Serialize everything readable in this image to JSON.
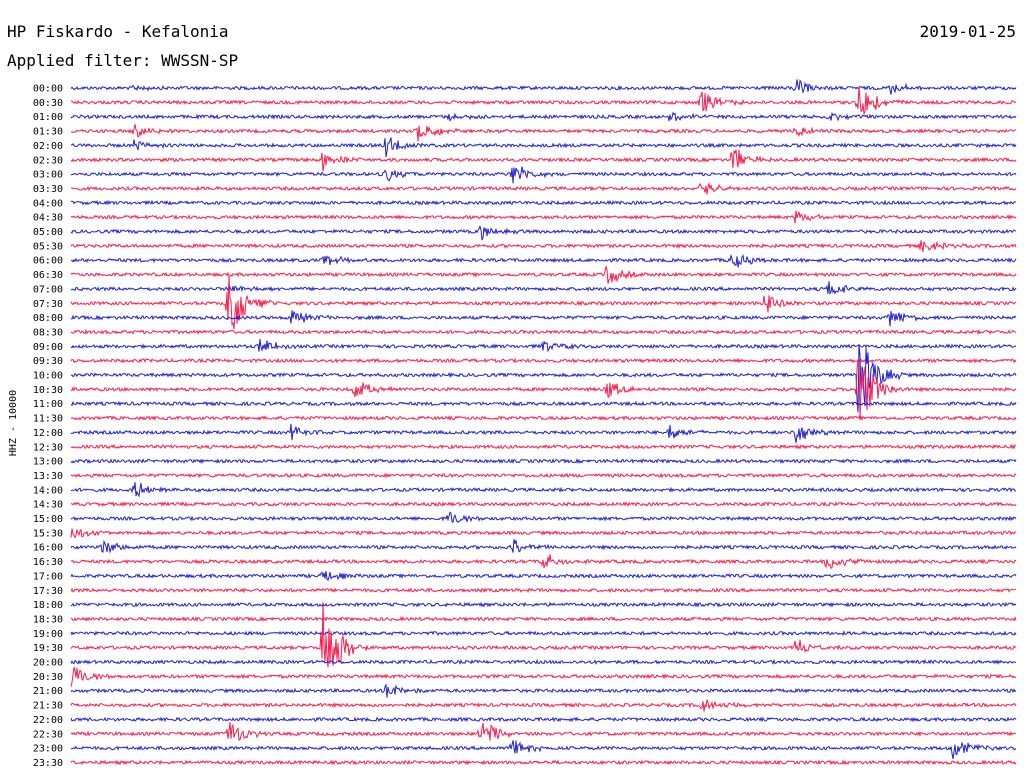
{
  "header": {
    "station": "HP Fiskardo - Kefalonia",
    "date": "2019-01-25",
    "filter": "Applied filter: WWSSN-SP"
  },
  "chart_data": {
    "type": "line",
    "title": "HP Fiskardo - Kefalonia",
    "subtitle": "Applied filter: WWSSN-SP",
    "date": "2019-01-25",
    "ylabel": "HHZ - 10000",
    "xlabel": "",
    "row_labels": [
      "00:00",
      "00:30",
      "01:00",
      "01:30",
      "02:00",
      "02:30",
      "03:00",
      "03:30",
      "04:00",
      "04:30",
      "05:00",
      "05:30",
      "06:00",
      "06:30",
      "07:00",
      "07:30",
      "08:00",
      "08:30",
      "09:00",
      "09:30",
      "10:00",
      "10:30",
      "11:00",
      "11:30",
      "12:00",
      "12:30",
      "13:00",
      "13:30",
      "14:00",
      "14:30",
      "15:00",
      "15:30",
      "16:00",
      "16:30",
      "17:00",
      "17:30",
      "18:00",
      "18:30",
      "19:00",
      "19:30",
      "20:00",
      "20:30",
      "21:00",
      "21:30",
      "22:00",
      "22:30",
      "23:00",
      "23:30"
    ],
    "row_minutes": 30,
    "trace_colors": [
      "#1f1fd6",
      "#ff1a4b"
    ],
    "grid": false,
    "events": [
      {
        "time": "00:02",
        "amp": 0.6
      },
      {
        "time": "00:23",
        "amp": 1.4
      },
      {
        "time": "00:26",
        "amp": 1.2
      },
      {
        "time": "00:50",
        "amp": 2.2
      },
      {
        "time": "00:55",
        "amp": 4.0
      },
      {
        "time": "01:12",
        "amp": 0.8
      },
      {
        "time": "01:19",
        "amp": 1.0
      },
      {
        "time": "01:24",
        "amp": 0.8
      },
      {
        "time": "01:32",
        "amp": 1.2
      },
      {
        "time": "01:41",
        "amp": 2.4
      },
      {
        "time": "01:53",
        "amp": 0.9
      },
      {
        "time": "02:02",
        "amp": 1.0
      },
      {
        "time": "02:10",
        "amp": 2.0
      },
      {
        "time": "02:38",
        "amp": 1.8
      },
      {
        "time": "02:51",
        "amp": 2.4
      },
      {
        "time": "03:10",
        "amp": 1.4
      },
      {
        "time": "03:14",
        "amp": 2.2
      },
      {
        "time": "03:50",
        "amp": 1.6
      },
      {
        "time": "04:53",
        "amp": 1.2
      },
      {
        "time": "05:13",
        "amp": 1.4
      },
      {
        "time": "05:57",
        "amp": 1.2
      },
      {
        "time": "06:08",
        "amp": 1.2
      },
      {
        "time": "06:21",
        "amp": 1.6
      },
      {
        "time": "06:47",
        "amp": 1.8
      },
      {
        "time": "07:05",
        "amp": 1.2
      },
      {
        "time": "07:24",
        "amp": 1.6
      },
      {
        "time": "07:35",
        "amp": 7.0
      },
      {
        "time": "07:52",
        "amp": 2.2
      },
      {
        "time": "08:07",
        "amp": 1.4
      },
      {
        "time": "08:26",
        "amp": 1.8
      },
      {
        "time": "09:06",
        "amp": 1.4
      },
      {
        "time": "09:15",
        "amp": 1.0
      },
      {
        "time": "10:25",
        "amp": 8.0
      },
      {
        "time": "10:39",
        "amp": 1.8
      },
      {
        "time": "10:47",
        "amp": 1.6
      },
      {
        "time": "10:55",
        "amp": 7.0
      },
      {
        "time": "12:07",
        "amp": 1.6
      },
      {
        "time": "12:19",
        "amp": 1.6
      },
      {
        "time": "12:23",
        "amp": 2.2
      },
      {
        "time": "14:02",
        "amp": 1.6
      },
      {
        "time": "15:12",
        "amp": 1.4
      },
      {
        "time": "15:30",
        "amp": 1.4
      },
      {
        "time": "16:01",
        "amp": 1.4
      },
      {
        "time": "16:14",
        "amp": 1.6
      },
      {
        "time": "16:45",
        "amp": 1.6
      },
      {
        "time": "16:54",
        "amp": 1.8
      },
      {
        "time": "17:08",
        "amp": 1.2
      },
      {
        "time": "19:38",
        "amp": 9.0
      },
      {
        "time": "19:53",
        "amp": 1.6
      },
      {
        "time": "20:30",
        "amp": 2.4
      },
      {
        "time": "21:10",
        "amp": 1.6
      },
      {
        "time": "21:50",
        "amp": 1.6
      },
      {
        "time": "22:35",
        "amp": 2.6
      },
      {
        "time": "22:43",
        "amp": 2.8
      },
      {
        "time": "23:14",
        "amp": 1.6
      },
      {
        "time": "23:28",
        "amp": 2.0
      }
    ]
  }
}
